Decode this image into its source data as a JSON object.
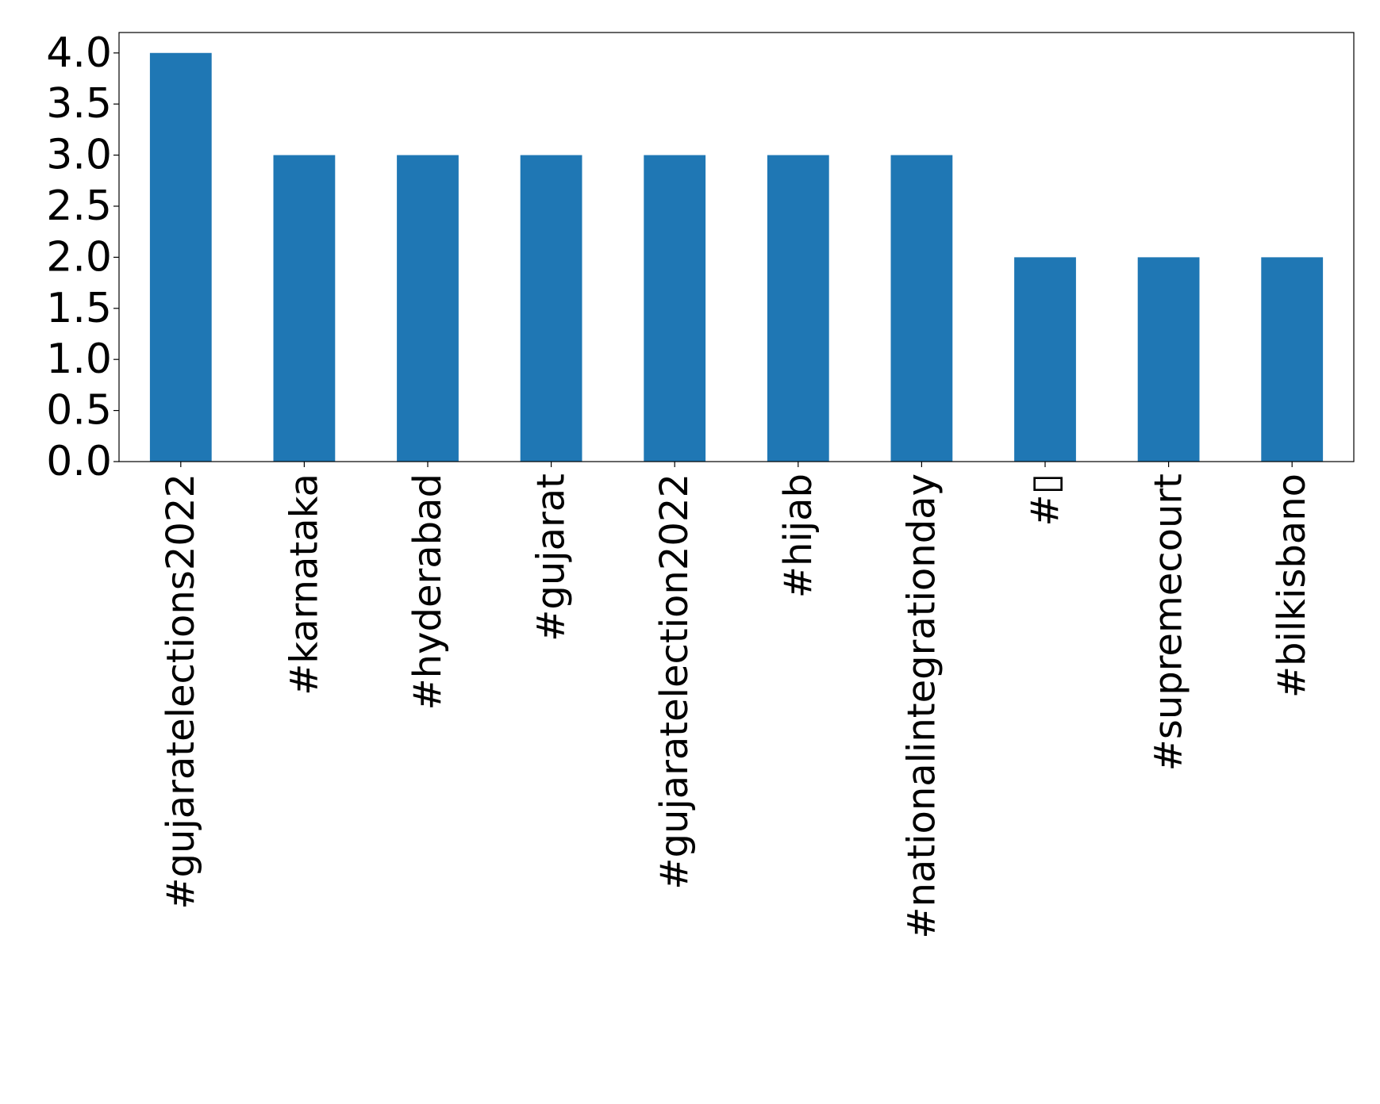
{
  "chart_data": {
    "type": "bar",
    "title": "",
    "xlabel": "",
    "ylabel": "",
    "categories": [
      "#gujaratelections2022",
      "#karnataka",
      "#hyderabad",
      "#gujarat",
      "#gujaratelection2022",
      "#hijab",
      "#nationalintegrationday",
      "#▯",
      "#supremecourt",
      "#bilkisbano"
    ],
    "values": [
      4,
      3,
      3,
      3,
      3,
      3,
      3,
      2,
      2,
      2
    ],
    "ylim": [
      0,
      4.2
    ],
    "yticks": [
      "0.0",
      "0.5",
      "1.0",
      "1.5",
      "2.0",
      "2.5",
      "3.0",
      "3.5",
      "4.0"
    ],
    "grid": false,
    "legend": "none",
    "bar_color": "#1f77b4"
  }
}
